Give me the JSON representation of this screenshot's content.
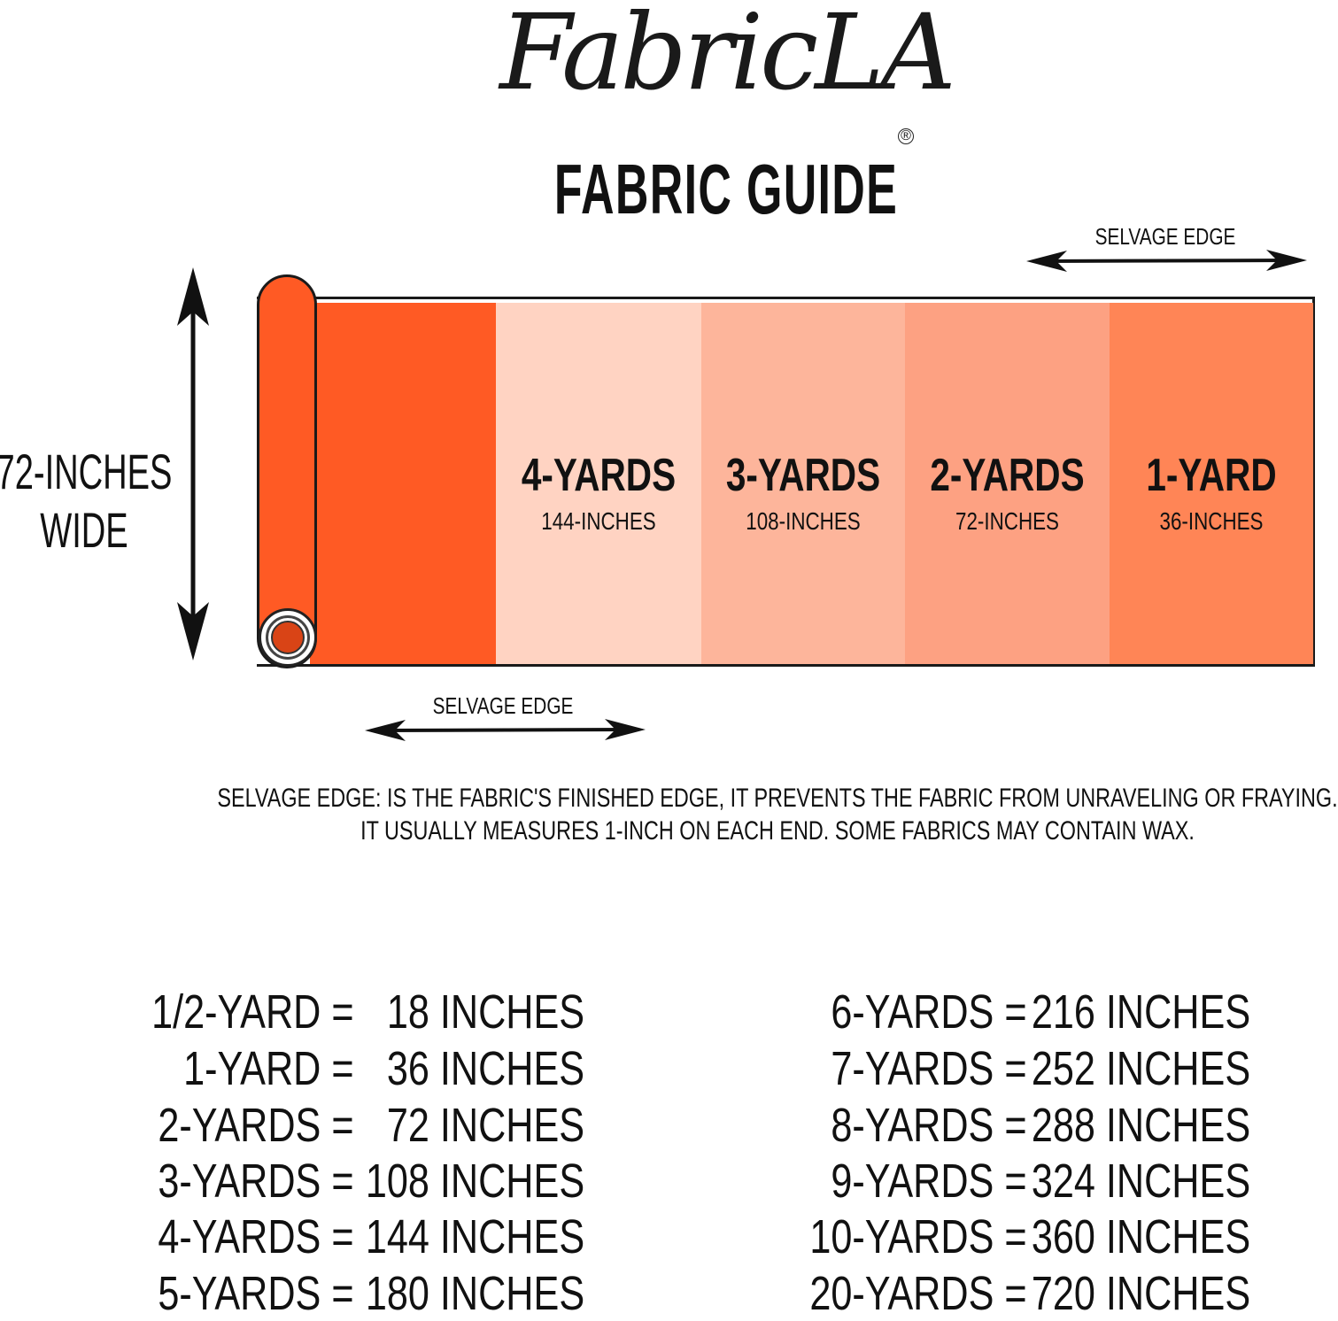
{
  "logo": {
    "text": "FabricLA",
    "registered": "®"
  },
  "title": "FABRIC GUIDE",
  "width_label": {
    "line1": "72-INCHES",
    "line2": "WIDE"
  },
  "selvage_top": "SELVAGE EDGE",
  "selvage_bottom": "SELVAGE EDGE",
  "panels": [
    {
      "yards": "4-YARDS",
      "inches": "144-INCHES",
      "color": "#FFD3C2"
    },
    {
      "yards": "3-YARDS",
      "inches": "108-INCHES",
      "color": "#FDB59B"
    },
    {
      "yards": "2-YARDS",
      "inches": "72-INCHES",
      "color": "#FDA182"
    },
    {
      "yards": "1-YARD",
      "inches": "36-INCHES",
      "color": "#FF8556"
    }
  ],
  "roll_color": "#FF5A24",
  "note": {
    "line1": "SELVAGE EDGE: IS THE FABRIC'S FINISHED EDGE, IT PREVENTS THE FABRIC FROM UNRAVELING OR FRAYING.",
    "line2": "IT USUALLY MEASURES 1-INCH ON EACH END. SOME FABRICS MAY CONTAIN WAX."
  },
  "conversions_left": [
    {
      "yards": "1/2-YARD =",
      "inches": "18 INCHES"
    },
    {
      "yards": "1-YARD =",
      "inches": "36 INCHES"
    },
    {
      "yards": "2-YARDS =",
      "inches": "72 INCHES"
    },
    {
      "yards": "3-YARDS =",
      "inches": "108 INCHES"
    },
    {
      "yards": "4-YARDS =",
      "inches": "144 INCHES"
    },
    {
      "yards": "5-YARDS =",
      "inches": "180 INCHES"
    }
  ],
  "conversions_right": [
    {
      "yards": "6-YARDS =",
      "inches": "216 INCHES"
    },
    {
      "yards": "7-YARDS =",
      "inches": "252 INCHES"
    },
    {
      "yards": "8-YARDS =",
      "inches": "288 INCHES"
    },
    {
      "yards": "9-YARDS =",
      "inches": "324 INCHES"
    },
    {
      "yards": "10-YARDS =",
      "inches": "360 INCHES"
    },
    {
      "yards": "20-YARDS =",
      "inches": "720 INCHES"
    }
  ]
}
